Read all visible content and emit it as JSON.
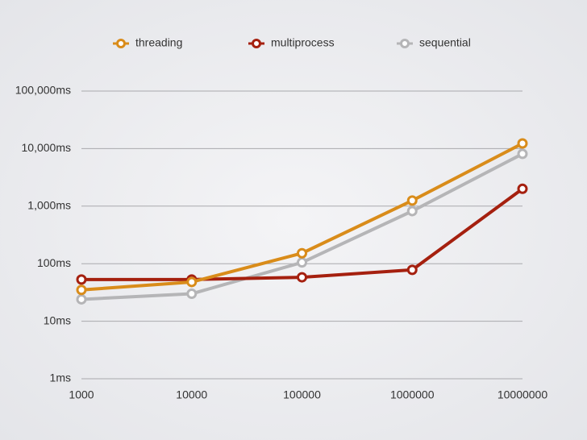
{
  "chart_data": {
    "type": "line",
    "categories": [
      "1000",
      "10000",
      "100000",
      "1000000",
      "10000000"
    ],
    "series": [
      {
        "name": "threading",
        "color": "#d98c1a",
        "values": [
          35,
          48,
          152,
          1250,
          12300
        ]
      },
      {
        "name": "multiprocess",
        "color": "#a5200f",
        "values": [
          53,
          53,
          58,
          78,
          2000
        ]
      },
      {
        "name": "sequential",
        "color": "#b5b5b7",
        "values": [
          24,
          30,
          105,
          820,
          8100
        ]
      }
    ],
    "log_scale": true,
    "ylim": [
      1,
      100000
    ],
    "yticks": [
      {
        "value": 1,
        "label": "1ms"
      },
      {
        "value": 10,
        "label": "10ms"
      },
      {
        "value": 100,
        "label": "100ms"
      },
      {
        "value": 1000,
        "label": "1,000ms"
      },
      {
        "value": 10000,
        "label": "10,000ms"
      },
      {
        "value": 100000,
        "label": "100,000ms"
      }
    ],
    "grid": true,
    "legend": "top"
  }
}
